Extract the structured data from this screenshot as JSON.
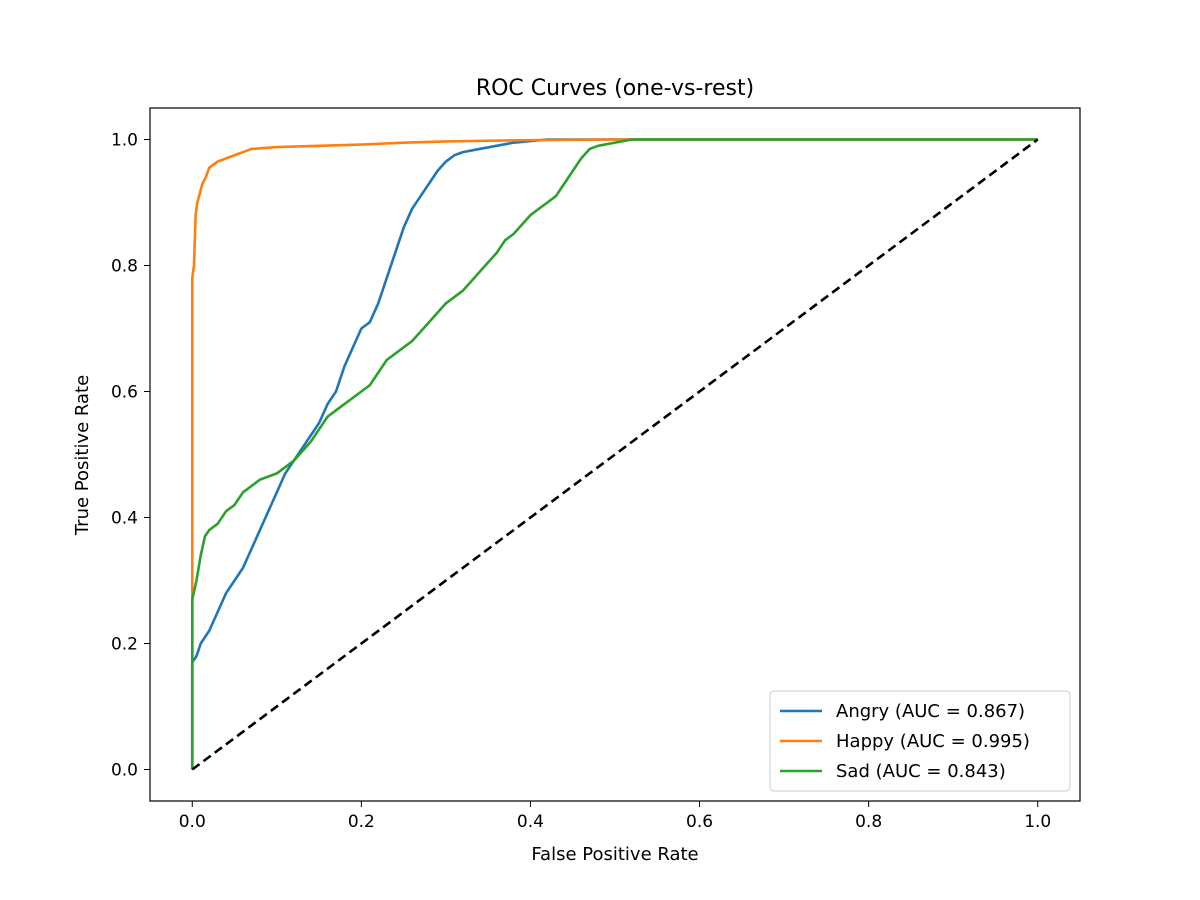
{
  "chart_data": {
    "type": "line",
    "title": "ROC Curves (one-vs-rest)",
    "xlabel": "False Positive Rate",
    "ylabel": "True Positive Rate",
    "xlim": [
      -0.05,
      1.05
    ],
    "ylim": [
      -0.05,
      1.05
    ],
    "xticks": [
      0.0,
      0.2,
      0.4,
      0.6,
      0.8,
      1.0
    ],
    "yticks": [
      0.0,
      0.2,
      0.4,
      0.6,
      0.8,
      1.0
    ],
    "xtick_labels": [
      "0.0",
      "0.2",
      "0.4",
      "0.6",
      "0.8",
      "1.0"
    ],
    "ytick_labels": [
      "0.0",
      "0.2",
      "0.4",
      "0.6",
      "0.8",
      "1.0"
    ],
    "grid": false,
    "legend_position": "lower-right",
    "series": [
      {
        "name": "Angry (AUC = 0.867)",
        "color": "#1f77b4",
        "x": [
          0.0,
          0.0,
          0.0,
          0.005,
          0.01,
          0.02,
          0.03,
          0.04,
          0.05,
          0.06,
          0.07,
          0.08,
          0.09,
          0.1,
          0.11,
          0.12,
          0.13,
          0.14,
          0.15,
          0.16,
          0.17,
          0.18,
          0.19,
          0.2,
          0.21,
          0.22,
          0.23,
          0.24,
          0.25,
          0.26,
          0.27,
          0.28,
          0.29,
          0.3,
          0.31,
          0.32,
          0.34,
          0.36,
          0.38,
          0.42,
          0.5,
          0.6,
          0.8,
          1.0
        ],
        "y": [
          0.0,
          0.13,
          0.17,
          0.18,
          0.2,
          0.22,
          0.25,
          0.28,
          0.3,
          0.32,
          0.35,
          0.38,
          0.41,
          0.44,
          0.47,
          0.49,
          0.51,
          0.53,
          0.55,
          0.58,
          0.6,
          0.64,
          0.67,
          0.7,
          0.71,
          0.74,
          0.78,
          0.82,
          0.86,
          0.89,
          0.91,
          0.93,
          0.95,
          0.965,
          0.975,
          0.98,
          0.985,
          0.99,
          0.995,
          1.0,
          1.0,
          1.0,
          1.0,
          1.0
        ]
      },
      {
        "name": "Happy (AUC = 0.995)",
        "color": "#ff7f0e",
        "x": [
          0.0,
          0.0,
          0.002,
          0.004,
          0.006,
          0.008,
          0.012,
          0.016,
          0.02,
          0.03,
          0.04,
          0.05,
          0.07,
          0.1,
          0.15,
          0.2,
          0.25,
          0.3,
          0.35,
          0.4,
          0.5,
          0.6,
          0.8,
          1.0
        ],
        "y": [
          0.0,
          0.78,
          0.8,
          0.88,
          0.9,
          0.91,
          0.93,
          0.94,
          0.955,
          0.965,
          0.97,
          0.975,
          0.985,
          0.988,
          0.99,
          0.992,
          0.995,
          0.997,
          0.998,
          0.999,
          1.0,
          1.0,
          1.0,
          1.0
        ]
      },
      {
        "name": "Sad (AUC = 0.843)",
        "color": "#2ca02c",
        "x": [
          0.0,
          0.0,
          0.005,
          0.01,
          0.015,
          0.02,
          0.03,
          0.04,
          0.05,
          0.06,
          0.07,
          0.08,
          0.1,
          0.12,
          0.14,
          0.16,
          0.18,
          0.2,
          0.21,
          0.22,
          0.23,
          0.24,
          0.26,
          0.28,
          0.3,
          0.32,
          0.34,
          0.36,
          0.37,
          0.38,
          0.4,
          0.42,
          0.43,
          0.44,
          0.45,
          0.46,
          0.47,
          0.48,
          0.5,
          0.52,
          0.6,
          0.8,
          1.0
        ],
        "y": [
          0.0,
          0.27,
          0.3,
          0.34,
          0.37,
          0.38,
          0.39,
          0.41,
          0.42,
          0.44,
          0.45,
          0.46,
          0.47,
          0.49,
          0.52,
          0.56,
          0.58,
          0.6,
          0.61,
          0.63,
          0.65,
          0.66,
          0.68,
          0.71,
          0.74,
          0.76,
          0.79,
          0.82,
          0.84,
          0.85,
          0.88,
          0.9,
          0.91,
          0.93,
          0.95,
          0.97,
          0.985,
          0.99,
          0.995,
          1.0,
          1.0,
          1.0,
          1.0
        ]
      },
      {
        "name": "",
        "color": "#000000",
        "dashed": true,
        "x": [
          0.0,
          1.0
        ],
        "y": [
          0.0,
          1.0
        ]
      }
    ]
  }
}
